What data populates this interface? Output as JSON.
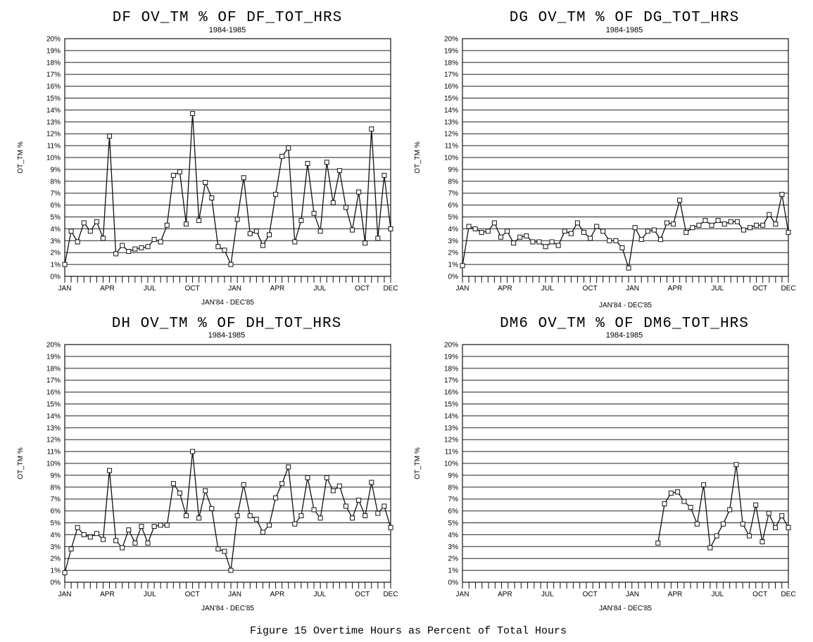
{
  "figure_caption": "Figure 15 Overtime Hours as Percent of Total Hours",
  "chart_data": [
    {
      "type": "line",
      "title": "DF OV_TM % OF DF_TOT_HRS",
      "subtitle": "1984-1985",
      "xlabel": "JAN'84 - DEC'85",
      "ylabel": "OT_TM %",
      "ylim": [
        0,
        20
      ],
      "yticks": [
        "0%",
        "1%",
        "2%",
        "3%",
        "4%",
        "5%",
        "6%",
        "7%",
        "8%",
        "9%",
        "10%",
        "11%",
        "12%",
        "13%",
        "14%",
        "15%",
        "16%",
        "17%",
        "18%",
        "19%",
        "20%"
      ],
      "xticks": [
        "JAN",
        "APR",
        "JUL",
        "OCT",
        "JAN",
        "APR",
        "JUL",
        "OCT",
        "DEC"
      ],
      "grid": true,
      "series": [
        {
          "values": [
            1.0,
            3.8,
            2.9,
            4.5,
            3.8,
            4.6,
            3.2,
            11.8,
            1.9,
            2.6,
            2.1,
            2.3,
            2.4,
            2.5,
            3.1,
            2.9,
            4.3,
            8.5,
            8.8,
            4.4,
            13.7,
            4.7,
            7.9,
            6.6,
            2.5,
            2.2,
            1.0,
            4.8,
            8.3,
            3.6,
            3.8,
            2.6,
            3.5,
            6.9,
            10.1,
            10.8,
            2.9,
            4.7,
            9.5,
            5.3,
            3.8,
            9.6,
            6.2,
            8.9,
            5.8,
            3.9,
            7.1,
            2.8,
            12.4,
            3.2,
            8.5,
            4.0
          ]
        }
      ]
    },
    {
      "type": "line",
      "title": "DG OV_TM % OF DG_TOT_HRS",
      "subtitle": "1984-1985",
      "xlabel": "JAN'84 - DEC'85",
      "ylabel": "OT_TM %",
      "ylim": [
        0,
        20
      ],
      "yticks": [
        "0%",
        "1%",
        "2%",
        "3%",
        "4%",
        "5%",
        "6%",
        "7%",
        "8%",
        "9%",
        "10%",
        "11%",
        "12%",
        "13%",
        "14%",
        "15%",
        "16%",
        "17%",
        "18%",
        "19%",
        "20%"
      ],
      "xticks": [
        "JAN",
        "APR",
        "JUL",
        "OCT",
        "JAN",
        "APR",
        "JUL",
        "OCT",
        "DEC"
      ],
      "grid": true,
      "series": [
        {
          "values": [
            0.9,
            4.2,
            4.0,
            3.7,
            3.8,
            4.5,
            3.3,
            3.8,
            2.8,
            3.3,
            3.4,
            2.9,
            2.9,
            2.5,
            2.9,
            2.6,
            3.8,
            3.6,
            4.5,
            3.7,
            3.2,
            4.2,
            3.8,
            3.0,
            3.0,
            2.4,
            0.7,
            4.1,
            3.1,
            3.8,
            3.9,
            3.1,
            4.5,
            4.4,
            6.4,
            3.7,
            4.1,
            4.3,
            4.7,
            4.3,
            4.7,
            4.4,
            4.6,
            4.6,
            3.9,
            4.1,
            4.3,
            4.3,
            5.2,
            4.4,
            6.9,
            3.7
          ]
        }
      ]
    },
    {
      "type": "line",
      "title": "DH OV_TM % OF DH_TOT_HRS",
      "subtitle": "1984-1985",
      "xlabel": "JAN'84 - DEC'85",
      "ylabel": "OT_TM %",
      "ylim": [
        0,
        20
      ],
      "yticks": [
        "0%",
        "1%",
        "2%",
        "3%",
        "4%",
        "5%",
        "6%",
        "7%",
        "8%",
        "9%",
        "10%",
        "11%",
        "12%",
        "13%",
        "14%",
        "15%",
        "16%",
        "17%",
        "18%",
        "19%",
        "20%"
      ],
      "xticks": [
        "JAN",
        "APR",
        "JUL",
        "OCT",
        "JAN",
        "APR",
        "JUL",
        "OCT",
        "DEC"
      ],
      "grid": true,
      "series": [
        {
          "values": [
            0.8,
            2.8,
            4.6,
            4.0,
            3.8,
            4.1,
            3.6,
            9.4,
            3.5,
            2.9,
            4.4,
            3.3,
            4.7,
            3.3,
            4.7,
            4.8,
            4.8,
            8.3,
            7.5,
            5.6,
            11.0,
            5.4,
            7.7,
            6.2,
            2.8,
            2.6,
            1.0,
            5.6,
            8.2,
            5.6,
            5.3,
            4.2,
            4.8,
            7.1,
            8.3,
            9.7,
            4.9,
            5.6,
            8.8,
            6.1,
            5.4,
            8.8,
            7.7,
            8.1,
            6.4,
            5.4,
            6.9,
            5.6,
            8.4,
            5.8,
            6.4,
            4.6
          ]
        }
      ]
    },
    {
      "type": "line",
      "title": "DM6 OV_TM % OF DM6_TOT_HRS",
      "subtitle": "1984-1985",
      "xlabel": "JAN'84 - DEC'85",
      "ylabel": "OT_TM %",
      "ylim": [
        0,
        20
      ],
      "yticks": [
        "0%",
        "1%",
        "2%",
        "3%",
        "4%",
        "5%",
        "6%",
        "7%",
        "8%",
        "9%",
        "10%",
        "11%",
        "12%",
        "13%",
        "14%",
        "15%",
        "16%",
        "17%",
        "18%",
        "19%",
        "20%"
      ],
      "xticks": [
        "JAN",
        "APR",
        "JUL",
        "OCT",
        "JAN",
        "APR",
        "JUL",
        "OCT",
        "DEC"
      ],
      "grid": true,
      "series": [
        {
          "values": [
            null,
            null,
            null,
            null,
            null,
            null,
            null,
            null,
            null,
            null,
            null,
            null,
            null,
            null,
            null,
            null,
            null,
            null,
            null,
            null,
            null,
            null,
            null,
            null,
            null,
            null,
            null,
            null,
            null,
            null,
            3.3,
            6.6,
            7.5,
            7.6,
            6.8,
            6.3,
            4.9,
            8.2,
            2.9,
            3.9,
            4.9,
            6.1,
            9.9,
            4.9,
            3.9,
            6.5,
            3.4,
            5.8,
            4.6,
            5.6,
            4.6
          ]
        }
      ]
    }
  ]
}
